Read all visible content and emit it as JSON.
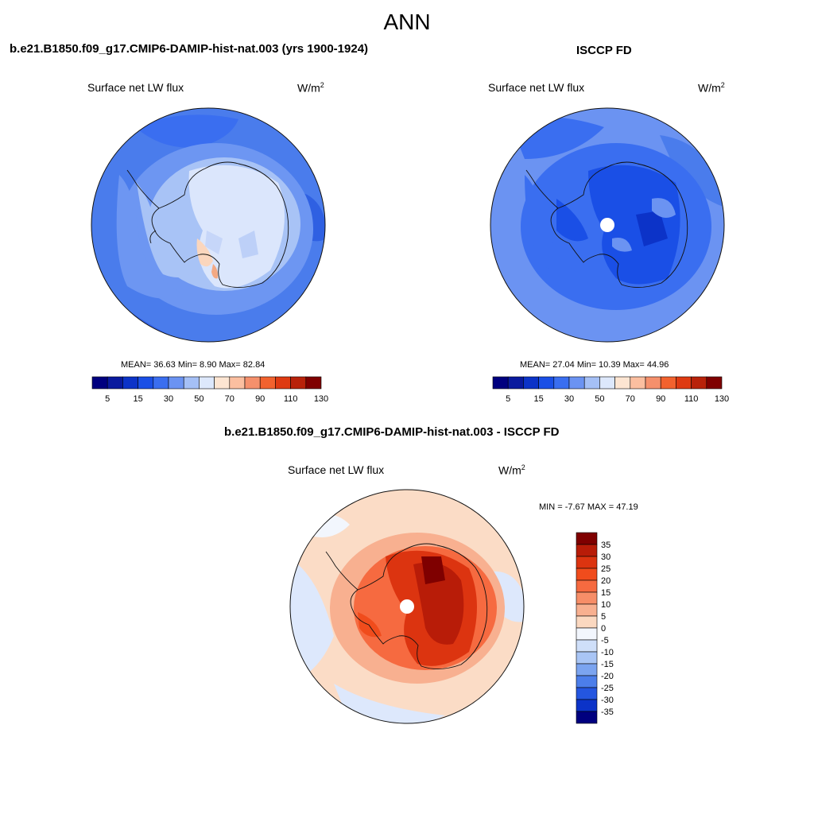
{
  "main_title": "ANN",
  "panels": [
    {
      "title": "b.e21.B1850.f09_g17.CMIP6-DAMIP-hist-nat.003 (yrs 1900-1924)",
      "variable": "Surface net LW flux",
      "units": "W/m",
      "units_exp": "2",
      "stats_text": "MEAN=  36.63  Min=   8.90  Max=  82.84",
      "stats": {
        "mean": 36.63,
        "min": 8.9,
        "max": 82.84
      }
    },
    {
      "title": "ISCCP FD",
      "variable": "Surface net LW flux",
      "units": "W/m",
      "units_exp": "2",
      "stats_text": "MEAN=  27.04  Min=  10.39  Max=  44.96",
      "stats": {
        "mean": 27.04,
        "min": 10.39,
        "max": 44.96
      }
    },
    {
      "title": "b.e21.B1850.f09_g17.CMIP6-DAMIP-hist-nat.003 - ISCCP FD",
      "variable": "Surface net LW flux",
      "units": "W/m",
      "units_exp": "2",
      "stats_text": "MIN =  -7.67 MAX =  47.19",
      "stats": {
        "min": -7.67,
        "max": 47.19
      }
    }
  ],
  "chart_data": [
    {
      "type": "heatmap",
      "projection": "south-polar-stereographic",
      "title": "b.e21.B1850.f09_g17.CMIP6-DAMIP-hist-nat.003 (yrs 1900-1924)",
      "variable": "Surface net LW flux",
      "units": "W/m2",
      "stats": {
        "mean": 36.63,
        "min": 8.9,
        "max": 82.84
      },
      "colorbar": {
        "orientation": "horizontal",
        "tick_labels": [
          "5",
          "15",
          "30",
          "50",
          "70",
          "90",
          "110",
          "130"
        ],
        "colors": [
          "#00007f",
          "#0a1a9e",
          "#0c33c8",
          "#1a4fe6",
          "#3a6ef0",
          "#6b93f2",
          "#a5c0f6",
          "#dde8fc",
          "#fde5d2",
          "#fbbfa0",
          "#f5906c",
          "#f2622e",
          "#de3a12",
          "#b8220a",
          "#7f0000"
        ]
      },
      "regions": [
        {
          "region": "open ocean",
          "level": "mid-blue"
        },
        {
          "region": "sea ice zone",
          "level": "light blue"
        },
        {
          "region": "antarctic plateau",
          "level": "pale blue"
        },
        {
          "region": "ross ice shelf edge",
          "level": "light orange"
        }
      ]
    },
    {
      "type": "heatmap",
      "projection": "south-polar-stereographic",
      "title": "ISCCP FD",
      "variable": "Surface net LW flux",
      "units": "W/m2",
      "stats": {
        "mean": 27.04,
        "min": 10.39,
        "max": 44.96
      },
      "colorbar": {
        "orientation": "horizontal",
        "tick_labels": [
          "5",
          "15",
          "30",
          "50",
          "70",
          "90",
          "110",
          "130"
        ],
        "colors": [
          "#00007f",
          "#0a1a9e",
          "#0c33c8",
          "#1a4fe6",
          "#3a6ef0",
          "#6b93f2",
          "#a5c0f6",
          "#dde8fc",
          "#fde5d2",
          "#fbbfa0",
          "#f5906c",
          "#f2622e",
          "#de3a12",
          "#b8220a",
          "#7f0000"
        ]
      },
      "regions": [
        {
          "region": "open ocean",
          "level": "light-mid blue"
        },
        {
          "region": "antarctic interior",
          "level": "strong blue"
        },
        {
          "region": "pole",
          "level": "missing"
        }
      ]
    },
    {
      "type": "heatmap",
      "projection": "south-polar-stereographic",
      "title": "b.e21.B1850.f09_g17.CMIP6-DAMIP-hist-nat.003 - ISCCP FD",
      "variable": "Surface net LW flux",
      "units": "W/m2",
      "stats": {
        "min": -7.67,
        "max": 47.19
      },
      "colorbar": {
        "orientation": "vertical",
        "tick_labels": [
          "35",
          "30",
          "25",
          "20",
          "15",
          "10",
          "5",
          "0",
          "-5",
          "-10",
          "-15",
          "-20",
          "-25",
          "-30",
          "-35"
        ],
        "colors": [
          "#7f0000",
          "#b81c08",
          "#dc3410",
          "#f04c1c",
          "#f66a40",
          "#f78e68",
          "#f8b090",
          "#fbd8c0",
          "#f2f6fd",
          "#cfdff9",
          "#a9c5f5",
          "#7ba4f0",
          "#4c7eea",
          "#2456e0",
          "#0c33c8",
          "#00007f"
        ]
      },
      "regions": [
        {
          "region": "antarctic continent",
          "level": "strong positive (dark red)"
        },
        {
          "region": "southern ocean",
          "level": "slightly positive (peach)"
        },
        {
          "region": "patches near 60S",
          "level": "slightly negative (light blue)"
        },
        {
          "region": "pole",
          "level": "missing"
        }
      ]
    }
  ],
  "colors": {
    "scale_low": "#00007f",
    "scale_high": "#7f0000"
  }
}
